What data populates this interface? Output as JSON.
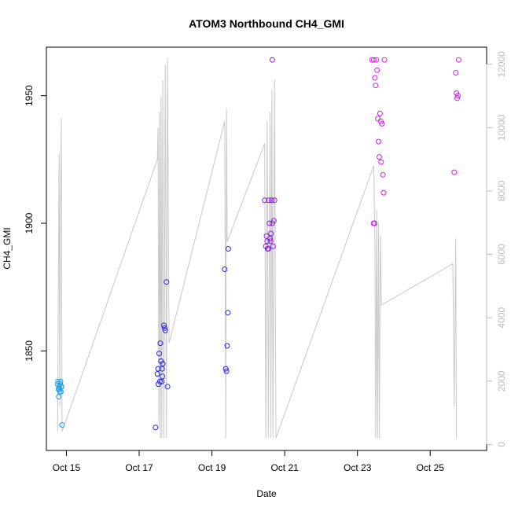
{
  "chart_data": {
    "type": "scatter",
    "title": "ATOM3 Northbound CH4_GMI",
    "xlabel": "Date",
    "ylabel": "CH4_GMI",
    "xlim": [
      14.45,
      26.55
    ],
    "ylim": [
      1811,
      1969
    ],
    "y2lim": [
      -190,
      12540
    ],
    "x_ticks": [
      {
        "value": 15,
        "label": "Oct 15"
      },
      {
        "value": 17,
        "label": "Oct 17"
      },
      {
        "value": 19,
        "label": "Oct 19"
      },
      {
        "value": 21,
        "label": "Oct 21"
      },
      {
        "value": 23,
        "label": "Oct 23"
      },
      {
        "value": 25,
        "label": "Oct 25"
      }
    ],
    "y_ticks": [
      {
        "value": 1850,
        "label": "1850"
      },
      {
        "value": 1900,
        "label": "1900"
      },
      {
        "value": 1950,
        "label": "1950"
      }
    ],
    "y2_ticks": [
      {
        "value": 0,
        "label": "0"
      },
      {
        "value": 2000,
        "label": "2000"
      },
      {
        "value": 4000,
        "label": "4000"
      },
      {
        "value": 6000,
        "label": "6000"
      },
      {
        "value": 8000,
        "label": "8000"
      },
      {
        "value": 10000,
        "label": "10000"
      },
      {
        "value": 12000,
        "label": "12000"
      }
    ],
    "grid": false,
    "legend": "none",
    "line_color": "#c8c8c8",
    "altitude_line": [
      [
        14.76,
        400
      ],
      [
        14.78,
        5500
      ],
      [
        14.8,
        9200
      ],
      [
        14.82,
        1200
      ],
      [
        14.84,
        7500
      ],
      [
        14.86,
        10300
      ],
      [
        14.88,
        400
      ],
      [
        17.5,
        9000
      ],
      [
        17.52,
        10000
      ],
      [
        17.54,
        500
      ],
      [
        17.56,
        10500
      ],
      [
        17.58,
        200
      ],
      [
        17.6,
        11000
      ],
      [
        17.62,
        200
      ],
      [
        17.65,
        11500
      ],
      [
        17.68,
        200
      ],
      [
        17.72,
        12000
      ],
      [
        17.75,
        200
      ],
      [
        17.78,
        12200
      ],
      [
        17.82,
        3200
      ],
      [
        19.35,
        10200
      ],
      [
        19.38,
        200
      ],
      [
        19.4,
        10600
      ],
      [
        19.42,
        6400
      ],
      [
        20.45,
        9500
      ],
      [
        20.48,
        200
      ],
      [
        20.52,
        10200
      ],
      [
        20.55,
        200
      ],
      [
        20.6,
        10500
      ],
      [
        20.62,
        200
      ],
      [
        20.65,
        11200
      ],
      [
        20.68,
        200
      ],
      [
        20.72,
        11500
      ],
      [
        20.76,
        200
      ],
      [
        23.45,
        8800
      ],
      [
        23.48,
        6300
      ],
      [
        23.5,
        200
      ],
      [
        23.53,
        7400
      ],
      [
        23.55,
        200
      ],
      [
        23.58,
        7000
      ],
      [
        23.6,
        200
      ],
      [
        23.63,
        6600
      ],
      [
        23.66,
        4400
      ],
      [
        25.62,
        5700
      ],
      [
        25.66,
        1200
      ],
      [
        25.7,
        6500
      ],
      [
        25.72,
        200
      ]
    ],
    "series": [
      {
        "name": "",
        "color": "#1e9fe6",
        "points": [
          [
            14.76,
            1837
          ],
          [
            14.78,
            1835
          ],
          [
            14.8,
            1836
          ],
          [
            14.82,
            1834
          ],
          [
            14.84,
            1838
          ],
          [
            14.86,
            1836
          ],
          [
            14.79,
            1832
          ],
          [
            14.81,
            1835
          ],
          [
            14.83,
            1837
          ],
          [
            14.85,
            1834
          ],
          [
            14.77,
            1838
          ],
          [
            14.87,
            1836
          ],
          [
            14.88,
            1821
          ]
        ]
      },
      {
        "name": "",
        "color": "#2626e6",
        "points": [
          [
            17.45,
            1820
          ],
          [
            17.5,
            1841
          ],
          [
            17.52,
            1843
          ],
          [
            17.53,
            1837
          ],
          [
            17.55,
            1849
          ],
          [
            17.57,
            1838
          ],
          [
            17.58,
            1853
          ],
          [
            17.6,
            1846
          ],
          [
            17.62,
            1838
          ],
          [
            17.63,
            1843
          ],
          [
            17.64,
            1840
          ],
          [
            17.65,
            1845
          ],
          [
            17.68,
            1860
          ],
          [
            17.7,
            1859
          ],
          [
            17.72,
            1858
          ],
          [
            17.75,
            1877
          ],
          [
            17.78,
            1836
          ],
          [
            19.35,
            1882
          ],
          [
            19.38,
            1843
          ],
          [
            19.4,
            1842
          ],
          [
            19.42,
            1852
          ],
          [
            19.44,
            1865
          ],
          [
            19.45,
            1890
          ]
        ]
      },
      {
        "name": "",
        "color": "#8a1ee6",
        "points": [
          [
            20.45,
            1909
          ],
          [
            20.48,
            1891
          ],
          [
            20.5,
            1895
          ],
          [
            20.52,
            1893
          ],
          [
            20.53,
            1890
          ],
          [
            20.55,
            1890
          ],
          [
            20.56,
            1909
          ],
          [
            20.58,
            1900
          ],
          [
            20.6,
            1894
          ],
          [
            20.61,
            1893
          ],
          [
            20.62,
            1896
          ],
          [
            20.64,
            1909
          ],
          [
            20.66,
            1900
          ],
          [
            20.68,
            1891
          ],
          [
            20.7,
            1901
          ],
          [
            20.72,
            1909
          ],
          [
            20.66,
            1964
          ]
        ]
      },
      {
        "name": "",
        "color": "#d21ee6",
        "points": [
          [
            23.4,
            1964
          ],
          [
            23.45,
            1964
          ],
          [
            23.48,
            1957
          ],
          [
            23.5,
            1954
          ],
          [
            23.52,
            1964
          ],
          [
            23.54,
            1960
          ],
          [
            23.56,
            1941
          ],
          [
            23.58,
            1932
          ],
          [
            23.6,
            1926
          ],
          [
            23.62,
            1943
          ],
          [
            23.64,
            1940
          ],
          [
            23.65,
            1924
          ],
          [
            23.67,
            1939
          ],
          [
            23.7,
            1919
          ],
          [
            23.72,
            1912
          ],
          [
            23.74,
            1964
          ],
          [
            23.44,
            1900
          ],
          [
            23.47,
            1900
          ],
          [
            25.66,
            1920
          ],
          [
            25.7,
            1959
          ],
          [
            25.72,
            1951
          ],
          [
            25.74,
            1949
          ],
          [
            25.76,
            1950
          ],
          [
            25.78,
            1964
          ]
        ]
      }
    ]
  }
}
